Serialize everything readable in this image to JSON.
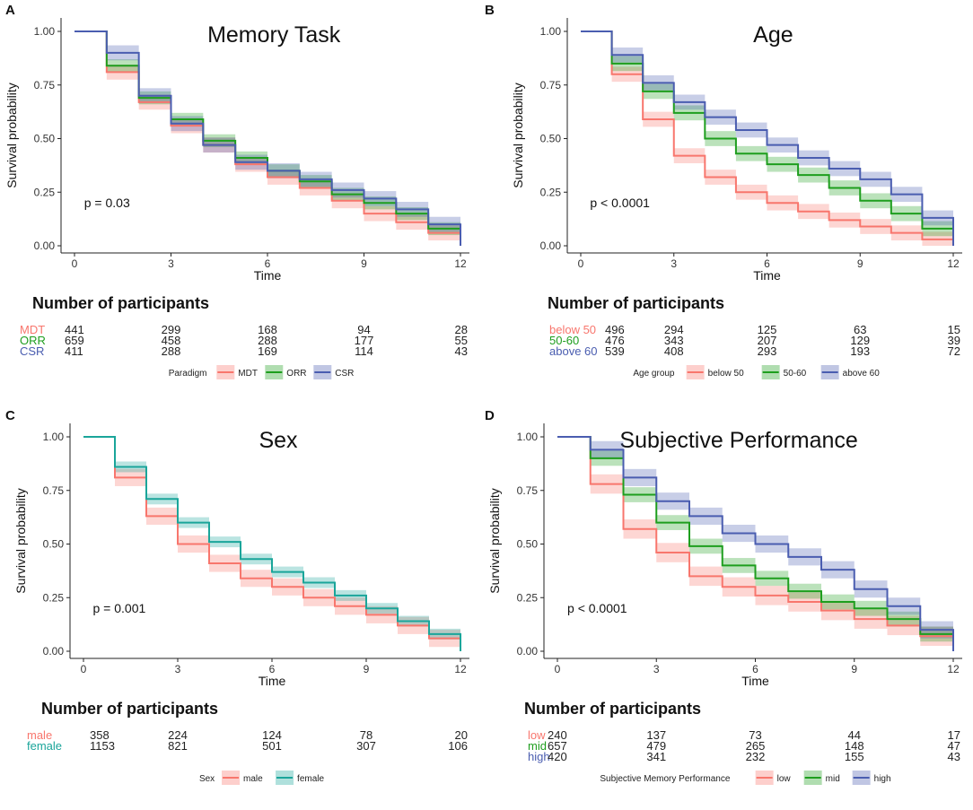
{
  "figure": {
    "ylabel": "Survival probability",
    "xlabel": "Time",
    "number_label": "Number of participants",
    "y_ticks": [
      "0.00",
      "0.25",
      "0.50",
      "0.75",
      "1.00"
    ],
    "x_ticks": [
      "0",
      "3",
      "6",
      "9",
      "12"
    ]
  },
  "chart_data": [
    {
      "panel": "A",
      "type": "line",
      "subtype": "kaplan-meier step with confidence bands",
      "title": "Memory Task",
      "xlabel": "Time",
      "ylabel": "Survival probability",
      "xlim": [
        0,
        12
      ],
      "ylim": [
        0,
        1
      ],
      "p_value": "p = 0.03",
      "x": [
        0,
        1,
        2,
        3,
        4,
        5,
        6,
        7,
        8,
        9,
        10,
        11,
        12
      ],
      "legend_title": "Paradigm",
      "series": [
        {
          "name": "MDT",
          "color": "#F8766D",
          "values": [
            1.0,
            0.81,
            0.67,
            0.56,
            0.47,
            0.38,
            0.32,
            0.27,
            0.21,
            0.15,
            0.11,
            0.06,
            0.0
          ],
          "band": 0.035
        },
        {
          "name": "ORR",
          "color": "#1E9E1E",
          "values": [
            1.0,
            0.84,
            0.69,
            0.59,
            0.49,
            0.41,
            0.35,
            0.3,
            0.24,
            0.2,
            0.15,
            0.08,
            0.0
          ],
          "band": 0.03
        },
        {
          "name": "CSR",
          "color": "#4A5DB0",
          "values": [
            1.0,
            0.9,
            0.7,
            0.57,
            0.47,
            0.39,
            0.35,
            0.31,
            0.26,
            0.22,
            0.17,
            0.1,
            0.0
          ],
          "band": 0.035
        }
      ],
      "risk_table": {
        "times": [
          0,
          3,
          6,
          9,
          12
        ],
        "rows": [
          {
            "label": "MDT",
            "color": "#F8766D",
            "values": [
              "441",
              "299",
              "168",
              "94",
              "28"
            ]
          },
          {
            "label": "ORR",
            "color": "#1E9E1E",
            "values": [
              "659",
              "458",
              "288",
              "177",
              "55"
            ]
          },
          {
            "label": "CSR",
            "color": "#4A5DB0",
            "values": [
              "411",
              "288",
              "169",
              "114",
              "43"
            ]
          }
        ]
      }
    },
    {
      "panel": "B",
      "type": "line",
      "subtype": "kaplan-meier step with confidence bands",
      "title": "Age",
      "xlabel": "Time",
      "ylabel": "Survival probability",
      "xlim": [
        0,
        12
      ],
      "ylim": [
        0,
        1
      ],
      "p_value": "p < 0.0001",
      "x": [
        0,
        1,
        2,
        3,
        4,
        5,
        6,
        7,
        8,
        9,
        10,
        11,
        12
      ],
      "legend_title": "Age group",
      "series": [
        {
          "name": "below 50",
          "color": "#F8766D",
          "values": [
            1.0,
            0.8,
            0.59,
            0.42,
            0.32,
            0.25,
            0.2,
            0.16,
            0.12,
            0.09,
            0.06,
            0.03,
            0.0
          ],
          "band": 0.035
        },
        {
          "name": "50-60",
          "color": "#1E9E1E",
          "values": [
            1.0,
            0.85,
            0.72,
            0.62,
            0.5,
            0.43,
            0.38,
            0.33,
            0.27,
            0.21,
            0.15,
            0.08,
            0.0
          ],
          "band": 0.035
        },
        {
          "name": "above 60",
          "color": "#4A5DB0",
          "values": [
            1.0,
            0.89,
            0.76,
            0.67,
            0.6,
            0.54,
            0.47,
            0.41,
            0.36,
            0.31,
            0.24,
            0.13,
            0.0
          ],
          "band": 0.035
        }
      ],
      "risk_table": {
        "times": [
          0,
          3,
          6,
          9,
          12
        ],
        "rows": [
          {
            "label": "below 50",
            "color": "#F8766D",
            "values": [
              "496",
              "294",
              "125",
              "63",
              "15"
            ]
          },
          {
            "label": "50-60",
            "color": "#1E9E1E",
            "values": [
              "476",
              "343",
              "207",
              "129",
              "39"
            ]
          },
          {
            "label": "above 60",
            "color": "#4A5DB0",
            "values": [
              "539",
              "408",
              "293",
              "193",
              "72"
            ]
          }
        ]
      }
    },
    {
      "panel": "C",
      "type": "line",
      "subtype": "kaplan-meier step with confidence bands",
      "title": "Sex",
      "xlabel": "Time",
      "ylabel": "Survival probability",
      "xlim": [
        0,
        12
      ],
      "ylim": [
        0,
        1
      ],
      "p_value": "p = 0.001",
      "x": [
        0,
        1,
        2,
        3,
        4,
        5,
        6,
        7,
        8,
        9,
        10,
        11,
        12
      ],
      "legend_title": "Sex",
      "series": [
        {
          "name": "male",
          "color": "#F8766D",
          "values": [
            1.0,
            0.81,
            0.63,
            0.5,
            0.41,
            0.34,
            0.3,
            0.25,
            0.21,
            0.17,
            0.12,
            0.06,
            0.0
          ],
          "band": 0.04
        },
        {
          "name": "female",
          "color": "#1AA59A",
          "values": [
            1.0,
            0.86,
            0.71,
            0.6,
            0.51,
            0.43,
            0.37,
            0.32,
            0.26,
            0.2,
            0.14,
            0.08,
            0.0
          ],
          "band": 0.025
        }
      ],
      "risk_table": {
        "times": [
          0,
          3,
          6,
          9,
          12
        ],
        "rows": [
          {
            "label": "male",
            "color": "#F8766D",
            "values": [
              "358",
              "224",
              "124",
              "78",
              "20"
            ]
          },
          {
            "label": "female",
            "color": "#1AA59A",
            "values": [
              "1153",
              "821",
              "501",
              "307",
              "106"
            ]
          }
        ]
      }
    },
    {
      "panel": "D",
      "type": "line",
      "subtype": "kaplan-meier step with confidence bands",
      "title": "Subjective Performance",
      "xlabel": "Time",
      "ylabel": "Survival probability",
      "xlim": [
        0,
        12
      ],
      "ylim": [
        0,
        1
      ],
      "p_value": "p < 0.0001",
      "x": [
        0,
        1,
        2,
        3,
        4,
        5,
        6,
        7,
        8,
        9,
        10,
        11,
        12
      ],
      "legend_title": "Subjective Memory Performance",
      "series": [
        {
          "name": "low",
          "color": "#F8766D",
          "values": [
            1.0,
            0.78,
            0.57,
            0.46,
            0.35,
            0.3,
            0.26,
            0.23,
            0.19,
            0.15,
            0.12,
            0.07,
            0.0
          ],
          "band": 0.045
        },
        {
          "name": "mid",
          "color": "#1E9E1E",
          "values": [
            1.0,
            0.9,
            0.73,
            0.6,
            0.49,
            0.4,
            0.34,
            0.28,
            0.23,
            0.2,
            0.15,
            0.08,
            0.0
          ],
          "band": 0.035
        },
        {
          "name": "high",
          "color": "#4A5DB0",
          "values": [
            1.0,
            0.94,
            0.81,
            0.7,
            0.63,
            0.55,
            0.5,
            0.44,
            0.38,
            0.29,
            0.21,
            0.1,
            0.0
          ],
          "band": 0.04
        }
      ],
      "risk_table": {
        "times": [
          0,
          3,
          6,
          9,
          12
        ],
        "rows": [
          {
            "label": "low",
            "color": "#F8766D",
            "values": [
              "240",
              "137",
              "73",
              "44",
              "17"
            ]
          },
          {
            "label": "mid",
            "color": "#1E9E1E",
            "values": [
              "657",
              "479",
              "265",
              "148",
              "47"
            ]
          },
          {
            "label": "high",
            "color": "#4A5DB0",
            "values": [
              "420",
              "341",
              "232",
              "155",
              "43"
            ]
          }
        ]
      }
    }
  ]
}
